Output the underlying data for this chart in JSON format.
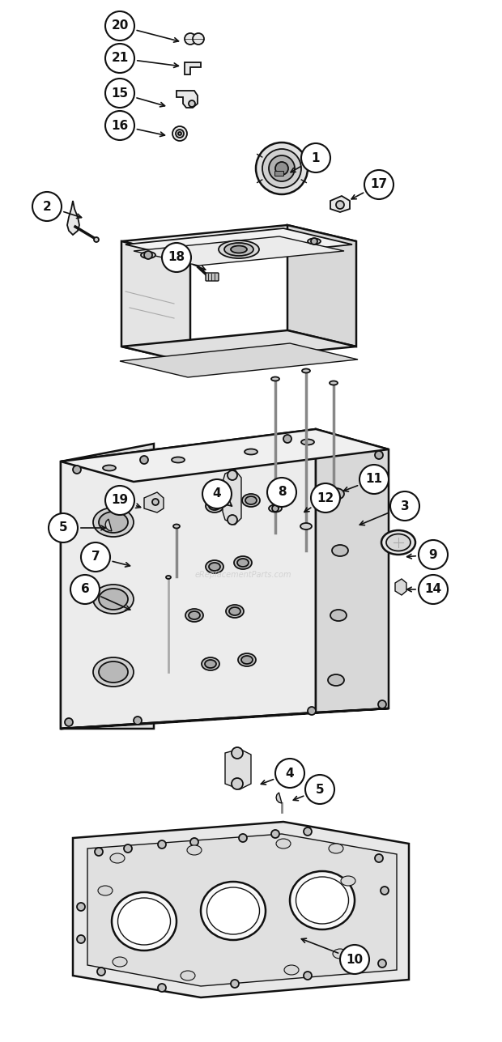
{
  "bg_color": "#ffffff",
  "line_color": "#111111",
  "fill_light": "#f0f0f0",
  "fill_mid": "#e0e0e0",
  "fill_dark": "#c8c8c8",
  "watermark": "eReplacementParts.com",
  "callouts": {
    "1": [
      390,
      195,
      355,
      215
    ],
    "2": [
      58,
      255,
      105,
      270
    ],
    "3": [
      500,
      625,
      440,
      650
    ],
    "4a": [
      268,
      610,
      290,
      628
    ],
    "4b": [
      358,
      955,
      318,
      970
    ],
    "5a": [
      78,
      652,
      135,
      652
    ],
    "5b": [
      395,
      975,
      358,
      990
    ],
    "6": [
      105,
      728,
      165,
      755
    ],
    "7": [
      118,
      688,
      165,
      700
    ],
    "8": [
      348,
      608,
      342,
      632
    ],
    "9": [
      535,
      685,
      498,
      688
    ],
    "10": [
      438,
      1185,
      368,
      1158
    ],
    "11": [
      462,
      592,
      420,
      608
    ],
    "12": [
      402,
      615,
      372,
      635
    ],
    "14": [
      535,
      728,
      498,
      728
    ],
    "15": [
      148,
      115,
      208,
      132
    ],
    "16": [
      148,
      155,
      208,
      168
    ],
    "17": [
      468,
      228,
      430,
      248
    ],
    "18": [
      218,
      318,
      258,
      335
    ],
    "19": [
      148,
      618,
      178,
      628
    ],
    "20": [
      148,
      32,
      225,
      52
    ],
    "21": [
      148,
      72,
      225,
      82
    ]
  }
}
